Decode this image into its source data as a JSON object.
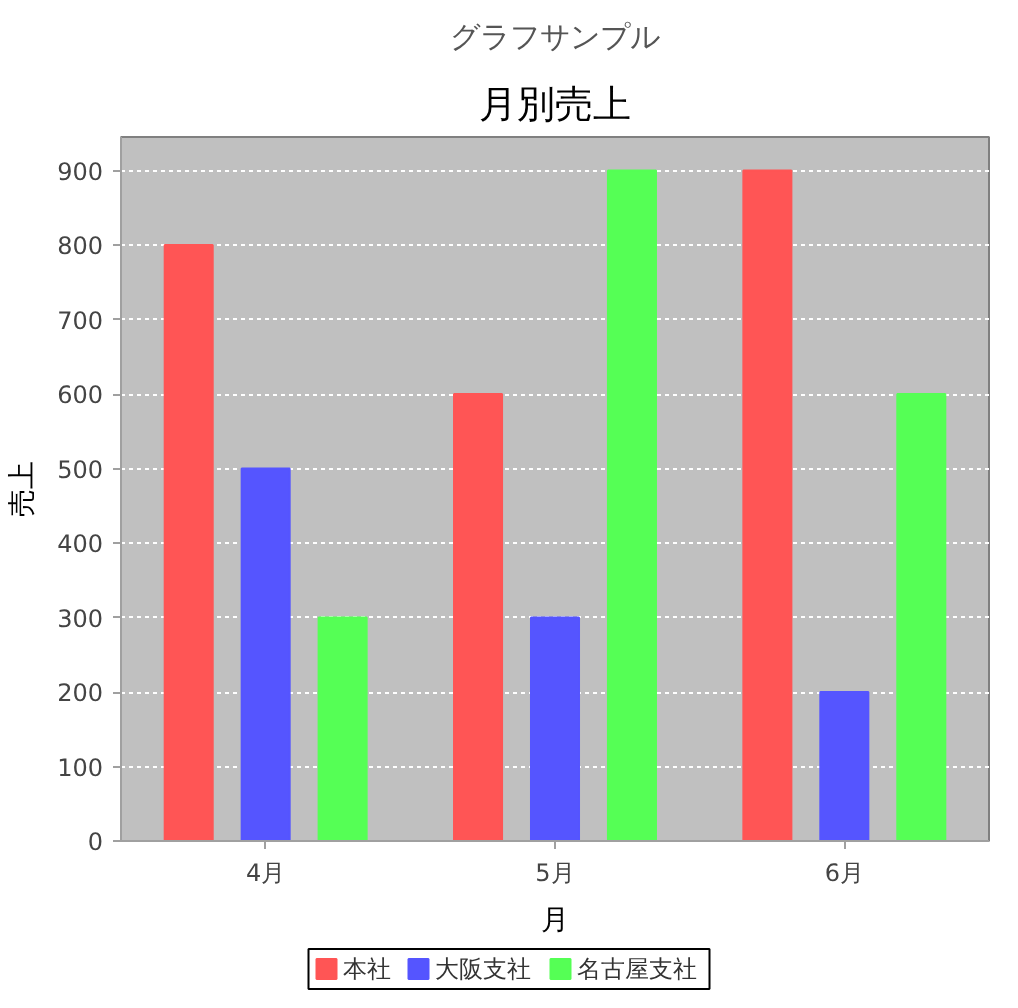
{
  "chart_data": {
    "type": "bar",
    "title": "月別売上",
    "xlabel": "月",
    "ylabel": "売上",
    "annotations": [
      "グラフサンプル"
    ],
    "categories": [
      "4月",
      "5月",
      "6月"
    ],
    "series": [
      {
        "name": "本社",
        "color": "#ff5555",
        "values": [
          800,
          600,
          900
        ]
      },
      {
        "name": "大阪支社",
        "color": "#5555ff",
        "values": [
          500,
          300,
          200
        ]
      },
      {
        "name": "名古屋支社",
        "color": "#55ff55",
        "values": [
          300,
          900,
          600
        ]
      }
    ],
    "ylim": [
      0,
      945
    ],
    "yticks": [
      0,
      100,
      200,
      300,
      400,
      500,
      600,
      700,
      800,
      900
    ],
    "grid": "y",
    "legend": "bottom"
  }
}
